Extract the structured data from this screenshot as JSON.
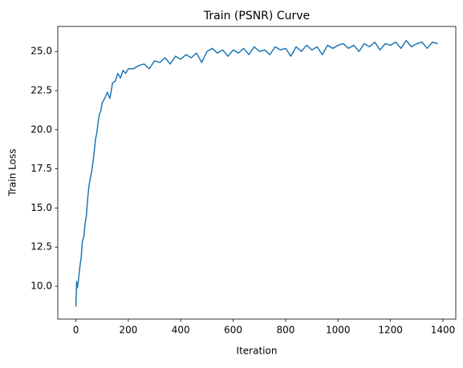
{
  "chart_data": {
    "type": "line",
    "title": "Train (PSNR) Curve",
    "xlabel": "Iteration",
    "ylabel": "Train Loss",
    "color": "#1f77b4",
    "x": [
      0,
      3,
      6,
      10,
      15,
      20,
      25,
      30,
      35,
      40,
      45,
      50,
      55,
      60,
      65,
      70,
      75,
      80,
      85,
      90,
      95,
      100,
      110,
      120,
      130,
      140,
      150,
      160,
      170,
      180,
      190,
      200,
      220,
      240,
      260,
      280,
      300,
      320,
      340,
      360,
      380,
      400,
      420,
      440,
      460,
      480,
      500,
      520,
      540,
      560,
      580,
      600,
      620,
      640,
      660,
      680,
      700,
      720,
      740,
      760,
      780,
      800,
      820,
      840,
      860,
      880,
      900,
      920,
      940,
      960,
      980,
      1000,
      1020,
      1040,
      1060,
      1080,
      1100,
      1120,
      1140,
      1160,
      1180,
      1200,
      1220,
      1240,
      1260,
      1280,
      1300,
      1320,
      1340,
      1360,
      1380
    ],
    "values": [
      8.7,
      10.3,
      9.9,
      10.4,
      11.2,
      11.8,
      12.9,
      13.1,
      14.0,
      14.5,
      15.6,
      16.4,
      16.9,
      17.3,
      17.9,
      18.6,
      19.4,
      19.8,
      20.5,
      21.0,
      21.2,
      21.7,
      22.0,
      22.4,
      22.0,
      23.0,
      23.1,
      23.6,
      23.3,
      23.8,
      23.6,
      23.9,
      23.9,
      24.1,
      24.2,
      23.9,
      24.4,
      24.3,
      24.6,
      24.2,
      24.7,
      24.5,
      24.8,
      24.6,
      24.9,
      24.3,
      25.0,
      25.2,
      24.9,
      25.1,
      24.7,
      25.1,
      24.9,
      25.2,
      24.8,
      25.3,
      25.0,
      25.1,
      24.8,
      25.3,
      25.1,
      25.2,
      24.7,
      25.3,
      25.0,
      25.4,
      25.1,
      25.3,
      24.8,
      25.4,
      25.2,
      25.4,
      25.5,
      25.2,
      25.4,
      25.0,
      25.5,
      25.3,
      25.6,
      25.1,
      25.5,
      25.4,
      25.6,
      25.2,
      25.7,
      25.3,
      25.5,
      25.6,
      25.2,
      25.6,
      25.5
    ],
    "xlim": [
      -69,
      1449
    ],
    "ylim": [
      7.9,
      26.6
    ],
    "xticks": [
      0,
      200,
      400,
      600,
      800,
      1000,
      1200,
      1400
    ],
    "yticks": [
      {
        "value": 10,
        "label": "10.0"
      },
      12.5,
      {
        "value": 15,
        "label": "15.0"
      },
      17.5,
      {
        "value": 20,
        "label": "20.0"
      },
      22.5,
      {
        "value": 25,
        "label": "25.0"
      }
    ]
  }
}
